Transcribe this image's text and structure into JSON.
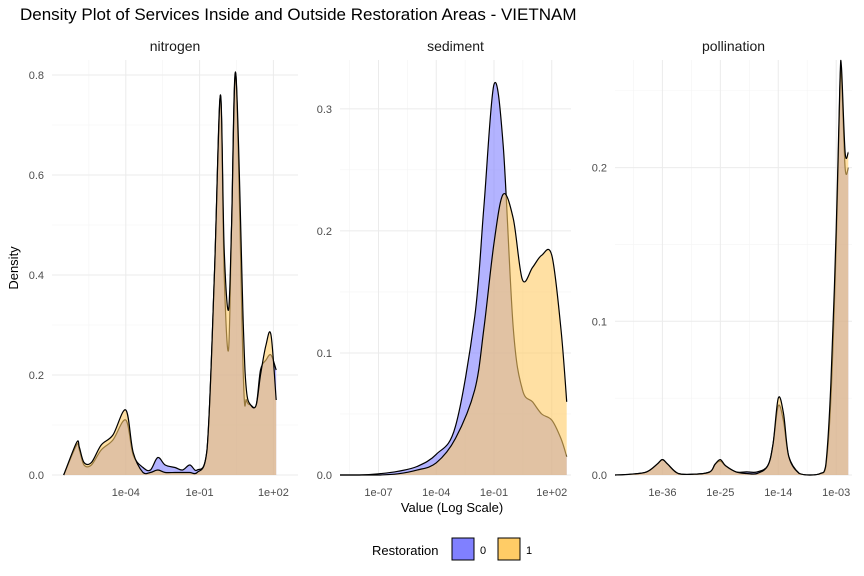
{
  "chart_data": {
    "type": "area",
    "title": "Density Plot of Services Inside and Outside Restoration Areas - VIETNAM",
    "xlabel": "Value (Log Scale)",
    "ylabel": "Density",
    "x_scale": "log10",
    "legend": {
      "title": "Restoration",
      "placement": "bottom",
      "entries": [
        {
          "label": "0",
          "color": "#8080ff"
        },
        {
          "label": "1",
          "color": "#ffcc66"
        }
      ]
    },
    "overlap_color": "#b48c8c",
    "panels": [
      {
        "name": "nitrogen",
        "xlim": [
          1e-07,
          1000.0
        ],
        "ylim": [
          0,
          0.83
        ],
        "x_ticks": [
          {
            "value": 0.0001,
            "label": "1e-04"
          },
          {
            "value": 0.1,
            "label": "1e-01"
          },
          {
            "value": 100.0,
            "label": "1e+02"
          }
        ],
        "y_ticks": [
          {
            "value": 0,
            "label": "0.0"
          },
          {
            "value": 0.2,
            "label": "0.2"
          },
          {
            "value": 0.4,
            "label": "0.4"
          },
          {
            "value": 0.6,
            "label": "0.6"
          },
          {
            "value": 0.8,
            "label": "0.8"
          }
        ],
        "series": [
          {
            "name": "0",
            "x": [
              3e-07,
              1e-06,
              1.3e-06,
              2e-06,
              4e-06,
              1e-05,
              3e-05,
              0.0001,
              0.0002,
              0.0005,
              0.001,
              0.002,
              0.004,
              0.01,
              0.02,
              0.04,
              0.08,
              0.2,
              0.4,
              0.7,
              1,
              1.5,
              2,
              3,
              6,
              8,
              12,
              20,
              30,
              50,
              80,
              130
            ],
            "y": [
              0,
              0.06,
              0.05,
              0.02,
              0.02,
              0.05,
              0.07,
              0.11,
              0.04,
              0.015,
              0.01,
              0.035,
              0.02,
              0.015,
              0.01,
              0.02,
              0.01,
              0.05,
              0.4,
              0.76,
              0.4,
              0.25,
              0.5,
              0.8,
              0.2,
              0.15,
              0.14,
              0.14,
              0.21,
              0.23,
              0.24,
              0.21
            ]
          },
          {
            "name": "1",
            "x": [
              3e-07,
              1e-06,
              1.3e-06,
              2e-06,
              4e-06,
              1e-05,
              3e-05,
              0.0001,
              0.0002,
              0.0005,
              0.001,
              0.002,
              0.004,
              0.01,
              0.02,
              0.04,
              0.08,
              0.2,
              0.4,
              0.7,
              1,
              1.5,
              2,
              3,
              6,
              8,
              12,
              20,
              30,
              50,
              80,
              130
            ],
            "y": [
              0,
              0.065,
              0.055,
              0.025,
              0.025,
              0.06,
              0.08,
              0.13,
              0.045,
              0.005,
              0.005,
              0.01,
              0.005,
              0.005,
              0.005,
              0.005,
              0.005,
              0.05,
              0.4,
              0.76,
              0.45,
              0.33,
              0.5,
              0.8,
              0.3,
              0.17,
              0.14,
              0.14,
              0.2,
              0.26,
              0.28,
              0.15
            ]
          }
        ]
      },
      {
        "name": "sediment",
        "xlim": [
          1e-09,
          1000.0
        ],
        "ylim": [
          0,
          0.34
        ],
        "x_ticks": [
          {
            "value": 1e-07,
            "label": "1e-07"
          },
          {
            "value": 0.0001,
            "label": "1e-04"
          },
          {
            "value": 0.1,
            "label": "1e-01"
          },
          {
            "value": 100.0,
            "label": "1e+02"
          }
        ],
        "y_ticks": [
          {
            "value": 0,
            "label": "0.0"
          },
          {
            "value": 0.1,
            "label": "0.1"
          },
          {
            "value": 0.2,
            "label": "0.2"
          },
          {
            "value": 0.3,
            "label": "0.3"
          }
        ],
        "series": [
          {
            "name": "0",
            "x": [
              1e-09,
              1e-08,
              1e-07,
              1e-06,
              1e-05,
              0.0001,
              0.001,
              0.01,
              0.03,
              0.1,
              0.3,
              1,
              3,
              10,
              30,
              100,
              300,
              600
            ],
            "y": [
              0,
              0,
              0.001,
              0.003,
              0.007,
              0.017,
              0.04,
              0.13,
              0.22,
              0.32,
              0.27,
              0.12,
              0.07,
              0.06,
              0.05,
              0.045,
              0.03,
              0.015
            ]
          },
          {
            "name": "1",
            "x": [
              1e-09,
              1e-08,
              1e-07,
              1e-06,
              1e-05,
              0.0001,
              0.001,
              0.01,
              0.03,
              0.1,
              0.3,
              1,
              3,
              10,
              30,
              100,
              300,
              600
            ],
            "y": [
              0,
              0,
              0,
              0.001,
              0.004,
              0.01,
              0.03,
              0.07,
              0.12,
              0.19,
              0.23,
              0.21,
              0.16,
              0.17,
              0.18,
              0.18,
              0.12,
              0.06
            ]
          }
        ]
      },
      {
        "name": "pollination",
        "xlim": [
          1e-45,
          1
        ],
        "ylim": [
          0,
          0.27
        ],
        "x_ticks": [
          {
            "value": 1e-36,
            "label": "1e-36"
          },
          {
            "value": 1e-25,
            "label": "1e-25"
          },
          {
            "value": 1e-14,
            "label": "1e-14"
          },
          {
            "value": 0.001,
            "label": "1e-03"
          }
        ],
        "y_ticks": [
          {
            "value": 0,
            "label": "0.0"
          },
          {
            "value": 0.1,
            "label": "0.1"
          },
          {
            "value": 0.2,
            "label": "0.2"
          }
        ],
        "series": [
          {
            "name": "0",
            "x": [
              1e-45,
              1e-42,
              1e-39,
              1e-37,
              1e-36,
              1e-35,
              1e-33,
              1e-30,
              1e-27,
              1e-26,
              1e-25,
              1e-24,
              1e-22,
              1e-20,
              1e-18,
              1e-16,
              1e-15,
              1e-14,
              1e-13,
              1e-12,
              1e-10,
              1e-08,
              1e-06,
              1e-05,
              0.0001,
              0.001,
              0.005,
              0.01,
              0.05,
              0.2
            ],
            "y": [
              0,
              0.0005,
              0.002,
              0.007,
              0.01,
              0.007,
              0.001,
              0.0005,
              0.002,
              0.007,
              0.009,
              0.006,
              0.002,
              0.002,
              0.002,
              0.006,
              0.02,
              0.045,
              0.035,
              0.012,
              0.001,
              0.0,
              0.001,
              0.005,
              0.05,
              0.15,
              0.25,
              0.26,
              0.2,
              0.2
            ]
          },
          {
            "name": "1",
            "x": [
              1e-45,
              1e-42,
              1e-39,
              1e-37,
              1e-36,
              1e-35,
              1e-33,
              1e-30,
              1e-27,
              1e-26,
              1e-25,
              1e-24,
              1e-22,
              1e-20,
              1e-18,
              1e-16,
              1e-15,
              1e-14,
              1e-13,
              1e-12,
              1e-10,
              1e-08,
              1e-06,
              1e-05,
              0.0001,
              0.001,
              0.005,
              0.01,
              0.05,
              0.2
            ],
            "y": [
              0,
              0.0005,
              0.002,
              0.007,
              0.01,
              0.007,
              0.001,
              0.0005,
              0.002,
              0.007,
              0.01,
              0.006,
              0.002,
              0.001,
              0.001,
              0.006,
              0.02,
              0.05,
              0.04,
              0.012,
              0.001,
              0.0,
              0.001,
              0.006,
              0.06,
              0.16,
              0.255,
              0.265,
              0.21,
              0.21
            ]
          }
        ]
      }
    ]
  }
}
